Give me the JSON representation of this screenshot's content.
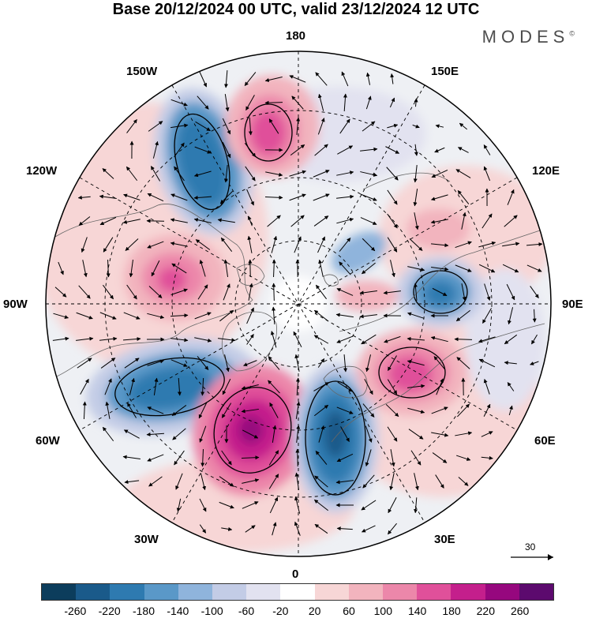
{
  "title": "Base 20/12/2024 00 UTC, valid 23/12/2024 12 UTC",
  "brand": "MODES",
  "brand_mark": "©",
  "longitude_labels": {
    "top": "180",
    "bottom": "0",
    "left": "90W",
    "right": "90E",
    "nw_upper": "150W",
    "nw_lower": "120W",
    "ne_upper": "150E",
    "ne_lower": "120E",
    "sw_upper": "60W",
    "sw_lower": "30W",
    "se_upper": "60E",
    "se_lower": "30E"
  },
  "reference_vector": "30",
  "colorbar": {
    "colors": [
      "#0c3d5c",
      "#1a5a8a",
      "#2e7ab0",
      "#5a98c8",
      "#8fb4dc",
      "#c3cce6",
      "#e2e2f0",
      "#ffffff",
      "#f7d6d6",
      "#f2b4be",
      "#ec87aa",
      "#e0509a",
      "#c41f8c",
      "#96077e",
      "#5c0a6e"
    ],
    "tick_labels": [
      "-260",
      "-220",
      "-180",
      "-140",
      "-100",
      "-60",
      "-20",
      "20",
      "60",
      "100",
      "140",
      "180",
      "220",
      "260"
    ]
  },
  "anomaly_centres": [
    {
      "sign": "negative",
      "strength": 220,
      "location": "150W"
    },
    {
      "sign": "positive",
      "strength": 180,
      "location": "170W"
    },
    {
      "sign": "positive",
      "strength": 180,
      "location": "100W"
    },
    {
      "sign": "negative",
      "strength": 220,
      "location": "60W"
    },
    {
      "sign": "positive",
      "strength": 260,
      "location": "15W"
    },
    {
      "sign": "negative",
      "strength": 260,
      "location": "10E"
    },
    {
      "sign": "positive",
      "strength": 220,
      "location": "55E"
    },
    {
      "sign": "negative",
      "strength": 180,
      "location": "95E"
    },
    {
      "sign": "positive",
      "strength": 100,
      "location": "125E"
    },
    {
      "sign": "negative",
      "strength": 100,
      "location": "140E"
    }
  ]
}
